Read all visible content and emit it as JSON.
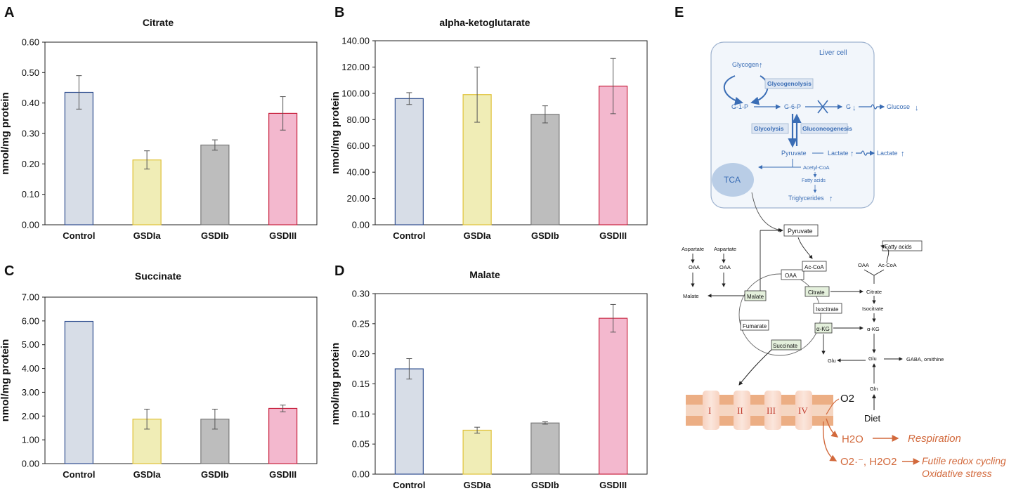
{
  "panels": {
    "a": "A",
    "b": "B",
    "c": "C",
    "d": "D",
    "e": "E"
  },
  "colors": {
    "fills": [
      "#d7dde7",
      "#f0edb6",
      "#bdbdbd",
      "#f3b8ce"
    ],
    "strokes": [
      "#2f4e8f",
      "#e0c23a",
      "#7a7a7a",
      "#c8233f"
    ]
  },
  "chart_data": [
    {
      "type": "bar",
      "panel": "A",
      "title": "Citrate",
      "categories": [
        "Control",
        "GSDIa",
        "GSDIb",
        "GSDIII"
      ],
      "values": [
        0.435,
        0.213,
        0.262,
        0.366
      ],
      "errors": [
        0.055,
        0.03,
        0.017,
        0.055
      ],
      "ylabel": "nmol/mg protein",
      "ylim": [
        0,
        0.6
      ],
      "yticks": [
        "0.00",
        "0.10",
        "0.20",
        "0.30",
        "0.40",
        "0.50",
        "0.60"
      ]
    },
    {
      "type": "bar",
      "panel": "B",
      "title": "alpha-ketoglutarate",
      "categories": [
        "Control",
        "GSDIa",
        "GSDIb",
        "GSDIII"
      ],
      "values": [
        96.0,
        99.0,
        84.0,
        105.5
      ],
      "errors": [
        4.5,
        21.0,
        6.5,
        21.0
      ],
      "ylabel": "nmol/mg protein",
      "ylim": [
        0,
        140
      ],
      "yticks": [
        "0.00",
        "20.00",
        "40.00",
        "60.00",
        "80.00",
        "100.00",
        "120.00",
        "140.00"
      ]
    },
    {
      "type": "bar",
      "panel": "C",
      "title": "Succinate",
      "categories": [
        "Control",
        "GSDIa",
        "GSDIb",
        "GSDIII"
      ],
      "values": [
        5.98,
        1.87,
        1.87,
        2.32
      ],
      "errors": [
        0.0,
        0.42,
        0.42,
        0.14
      ],
      "ylabel": "nmol/mg protein",
      "ylim": [
        0,
        7
      ],
      "yticks": [
        "0.00",
        "1.00",
        "2.00",
        "3.00",
        "4.00",
        "5.00",
        "6.00",
        "7.00"
      ]
    },
    {
      "type": "bar",
      "panel": "D",
      "title": "Malate",
      "categories": [
        "Control",
        "GSDIa",
        "GSDIb",
        "GSDIII"
      ],
      "values": [
        0.175,
        0.073,
        0.085,
        0.259
      ],
      "errors": [
        0.017,
        0.005,
        0.002,
        0.023
      ],
      "ylabel": "nmol/mg protein",
      "ylim": [
        0,
        0.3
      ],
      "yticks": [
        "0.00",
        "0.05",
        "0.10",
        "0.15",
        "0.20",
        "0.25",
        "0.30"
      ]
    }
  ],
  "diagram": {
    "liver_cell": "Liver cell",
    "glycogen": "Glycogen",
    "glycogenolysis": "Glycogenolysis",
    "g1p": "G-1-P",
    "g6p": "G-6-P",
    "g": "G",
    "glucose": "Glucose",
    "glycolysis": "Glycolysis",
    "gluconeogenesis": "Gluconeogenesis",
    "pyruvate_cell": "Pyruvate",
    "lactate_cell": "Lactate",
    "lactate_out": "Lactate",
    "tca": "TCA",
    "acetyl_coa": "Acetyl-CoA",
    "fatty_acids_cell": "Fatty acids",
    "triglycerides": "Triglycerides",
    "up_arrow": "↑",
    "down_arrow": "↓",
    "pyruvate": "Pyruvate",
    "aspartate1": "Aspartate",
    "aspartate2": "Aspartate",
    "oaa1": "OAA",
    "oaa2": "OAA",
    "oaa_box": "OAA",
    "oaa3": "OAA",
    "ac_coa_box": "Ac-CoA",
    "ac_coa2": "Ac-CoA",
    "fatty_acids": "Fatty acids",
    "malate_out": "Malate",
    "malate_box": "Malate",
    "citrate_box": "Citrate",
    "citrate_out": "Citrate",
    "isocitrate_box": "Isocitrate",
    "isocitrate_out": "Isocitrate",
    "fumarate_box": "Fumarate",
    "akg_box": "α-KG",
    "akg_out": "α-KG",
    "succinate_box": "Succinate",
    "glu1": "Glu",
    "glu2": "Glu",
    "gaba": "GABA, omithine",
    "gln": "Gln",
    "diet": "Diet",
    "c1": "I",
    "c2": "II",
    "c3": "III",
    "c4": "IV",
    "o2": "O2",
    "h2o": "H2O",
    "respiration": "Respiration",
    "ros": "O2·⁻, H2O2",
    "futile": "Futile redox cycling",
    "oxidative": "Oxidative stress"
  }
}
